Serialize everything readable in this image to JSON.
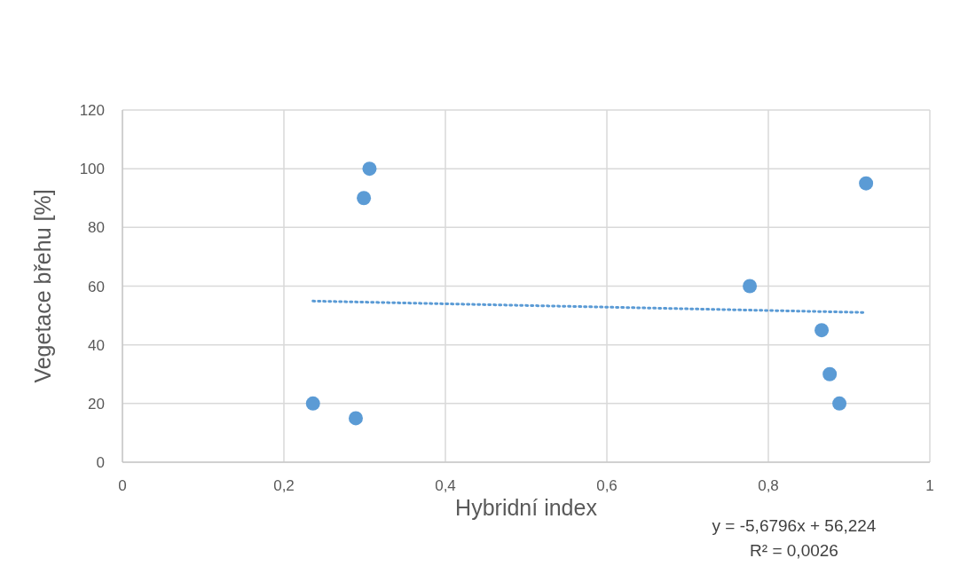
{
  "chart_data": {
    "type": "scatter",
    "xlabel": "Hybridní index",
    "ylabel": "Vegetace břehu [%]",
    "series": [
      {
        "type": "scatter",
        "color": "#5b9bd5",
        "x": [
          0.236,
          0.289,
          0.299,
          0.306,
          0.777,
          0.866,
          0.876,
          0.888,
          0.921
        ],
        "values": [
          20,
          15,
          90,
          100,
          60,
          45,
          30,
          20,
          95
        ],
        "marker": "circle"
      },
      {
        "type": "line",
        "color": "#5b9bd5",
        "x": [
          0.236,
          0.921
        ],
        "values": [
          54.9,
          51.0
        ],
        "line_style": "dotted",
        "marker": "none"
      }
    ],
    "xlim": [
      0,
      1
    ],
    "ylim": [
      0,
      120
    ],
    "xticks": [
      0,
      {
        "value": 0.2,
        "label": "0,2"
      },
      {
        "value": 0.4,
        "label": "0,4"
      },
      {
        "value": 0.6,
        "label": "0,6"
      },
      {
        "value": 0.8,
        "label": "0,8"
      },
      1
    ],
    "yticks": [
      0,
      20,
      40,
      60,
      80,
      100,
      120
    ],
    "grid": true,
    "annotations": [
      "y = -5,6796x + 56,224",
      "R² = 0,0026"
    ]
  }
}
